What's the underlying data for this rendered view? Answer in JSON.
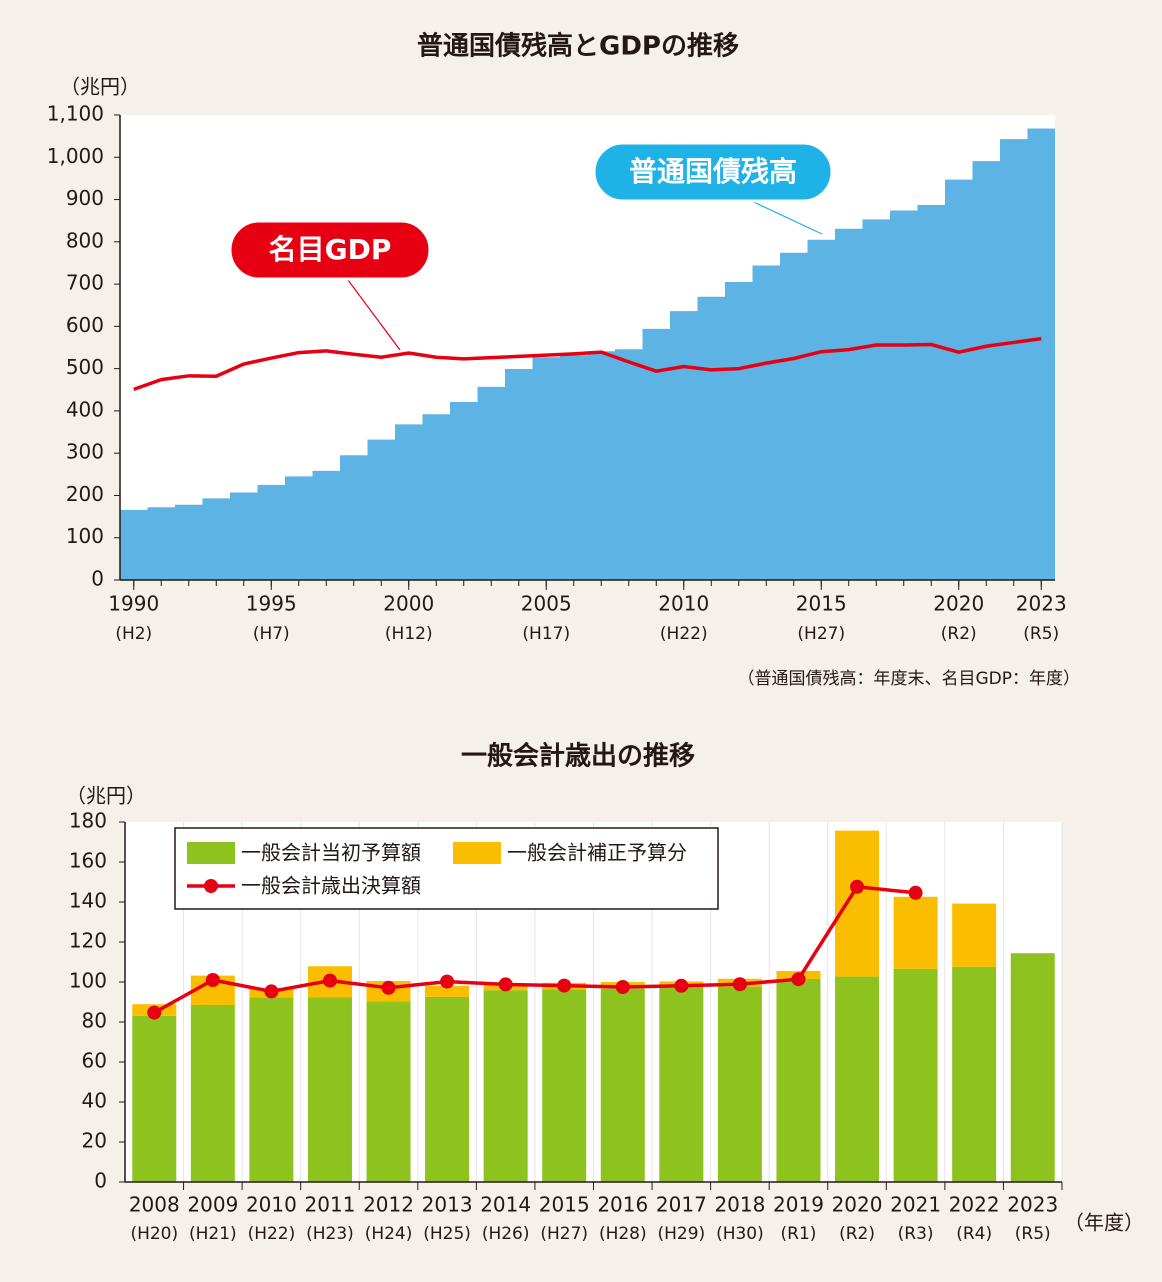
{
  "chart_data": [
    {
      "type": "area-line",
      "title": "普通国債残高とGDPの推移",
      "y_unit": "（兆円）",
      "x": [
        1990,
        1991,
        1992,
        1993,
        1994,
        1995,
        1996,
        1997,
        1998,
        1999,
        2000,
        2001,
        2002,
        2003,
        2004,
        2005,
        2006,
        2007,
        2008,
        2009,
        2010,
        2011,
        2012,
        2013,
        2014,
        2015,
        2016,
        2017,
        2018,
        2019,
        2020,
        2021,
        2022,
        2023
      ],
      "series": [
        {
          "name": "普通国債残高",
          "kind": "step-area",
          "color": "#5db3e4",
          "label_color": "#1fb2e6",
          "values": [
            166,
            172,
            178,
            193,
            207,
            225,
            245,
            258,
            295,
            332,
            368,
            392,
            421,
            457,
            499,
            527,
            532,
            541,
            546,
            594,
            636,
            670,
            705,
            744,
            774,
            805,
            831,
            853,
            874,
            887,
            947,
            991,
            1043,
            1068
          ]
        },
        {
          "name": "名目GDP",
          "kind": "line",
          "color": "#e60012",
          "label_color": "#e60012",
          "values": [
            451,
            474,
            483,
            482,
            511,
            525,
            538,
            542,
            534,
            527,
            537,
            527,
            523,
            526,
            529,
            532,
            535,
            539,
            516,
            494,
            505,
            497,
            500,
            513,
            524,
            540,
            545,
            556,
            556,
            557,
            539,
            553,
            562,
            571
          ]
        }
      ],
      "xlim": [
        1989.5,
        2023.5
      ],
      "ylim": [
        0,
        1100
      ],
      "xticks": [
        1990,
        1995,
        2000,
        2005,
        2010,
        2015,
        2020,
        2023
      ],
      "xtick_sublabels": [
        "(H2)",
        "(H7)",
        "(H12)",
        "(H17)",
        "(H22)",
        "(H27)",
        "(R2)",
        "(R5)"
      ],
      "yticks": [
        0,
        100,
        200,
        300,
        400,
        500,
        600,
        700,
        800,
        900,
        {
          "value": 1000,
          "label": "1,000"
        },
        {
          "value": 1100,
          "label": "1,100"
        }
      ],
      "note": "（普通国債残高：年度末、名目GDP：年度）"
    },
    {
      "type": "bar",
      "title": "一般会計歳出の推移",
      "y_unit": "（兆円）",
      "x_unit": "（年度）",
      "categories": [
        "2008",
        "2009",
        "2010",
        "2011",
        "2012",
        "2013",
        "2014",
        "2015",
        "2016",
        "2017",
        "2018",
        "2019",
        "2020",
        "2021",
        "2022",
        "2023"
      ],
      "category_sublabels": [
        "(H20)",
        "(H21)",
        "(H22)",
        "(H23)",
        "(H24)",
        "(H25)",
        "(H26)",
        "(H27)",
        "(H28)",
        "(H29)",
        "(H30)",
        "(R1)",
        "(R2)",
        "(R3)",
        "(R4)",
        "(R5)"
      ],
      "series": [
        {
          "name": "一般会計当初予算額",
          "kind": "bar",
          "color": "#8dc21f",
          "values": [
            83.1,
            88.5,
            92.3,
            92.4,
            90.3,
            92.6,
            95.9,
            96.3,
            96.7,
            97.5,
            97.7,
            101.5,
            102.7,
            106.6,
            107.6,
            114.4
          ]
        },
        {
          "name": "一般会計補正予算分",
          "kind": "stack",
          "color": "#fbbd00",
          "values": [
            5.8,
            14.7,
            4.4,
            15.5,
            10.2,
            5.5,
            3.1,
            3.3,
            3.3,
            2.8,
            3.9,
            4.0,
            73.0,
            36.0,
            31.6,
            null
          ]
        },
        {
          "name": "一般会計歳出決算額",
          "kind": "line",
          "color": "#e60012",
          "values": [
            84.7,
            101.0,
            95.3,
            100.7,
            97.1,
            100.2,
            98.8,
            98.2,
            97.5,
            98.1,
            98.9,
            101.4,
            147.6,
            144.6,
            null,
            null
          ]
        }
      ],
      "ylim": [
        0,
        180
      ],
      "yticks": [
        0,
        20,
        40,
        60,
        80,
        100,
        120,
        140,
        160,
        180
      ]
    }
  ]
}
